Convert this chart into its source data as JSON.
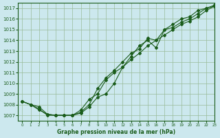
{
  "title": "Graphe pression niveau de la mer (hPa)",
  "bg_color": "#cce8ee",
  "line_color": "#1a5c1a",
  "grid_color": "#99bb99",
  "xlim": [
    -0.5,
    23
  ],
  "ylim": [
    1006.5,
    1017.5
  ],
  "yticks": [
    1007,
    1008,
    1009,
    1010,
    1011,
    1012,
    1013,
    1014,
    1015,
    1016,
    1017
  ],
  "xticks": [
    0,
    1,
    2,
    3,
    4,
    5,
    6,
    7,
    8,
    9,
    10,
    11,
    12,
    13,
    14,
    15,
    16,
    17,
    18,
    19,
    20,
    21,
    22,
    23
  ],
  "series1_x": [
    0,
    1,
    2,
    3,
    4,
    5,
    6,
    7,
    8,
    9,
    10,
    11,
    12,
    13,
    14,
    15,
    16,
    17,
    18,
    19,
    20,
    21,
    22,
    23
  ],
  "series1_y": [
    1008.3,
    1008.0,
    1007.5,
    1007.1,
    1007.0,
    1007.0,
    1007.0,
    1007.5,
    1008.5,
    1009.0,
    1010.3,
    1011.0,
    1011.5,
    1012.5,
    1013.5,
    1014.0,
    1013.3,
    1015.0,
    1015.5,
    1016.0,
    1016.2,
    1016.8,
    1017.0,
    1017.2
  ],
  "series2_x": [
    0,
    1,
    2,
    3,
    4,
    5,
    6,
    7,
    8,
    9,
    10,
    11,
    12,
    13,
    14,
    15,
    16,
    17,
    18,
    19,
    20,
    21,
    22,
    23
  ],
  "series2_y": [
    1008.3,
    1008.0,
    1007.8,
    1007.1,
    1007.0,
    1007.0,
    1007.0,
    1007.2,
    1007.8,
    1008.7,
    1009.0,
    1010.0,
    1011.5,
    1012.2,
    1012.8,
    1013.5,
    1014.0,
    1014.5,
    1015.0,
    1015.5,
    1015.8,
    1016.2,
    1016.8,
    1017.2
  ],
  "series3_x": [
    0,
    1,
    2,
    3,
    4,
    5,
    6,
    7,
    8,
    9,
    10,
    11,
    12,
    13,
    14,
    15,
    16,
    17,
    18,
    19,
    20,
    21,
    22,
    23
  ],
  "series3_y": [
    1008.3,
    1008.0,
    1007.6,
    1007.0,
    1007.0,
    1007.0,
    1007.0,
    1007.3,
    1008.0,
    1009.5,
    1010.5,
    1011.2,
    1012.0,
    1012.8,
    1013.2,
    1014.2,
    1014.0,
    1015.0,
    1015.2,
    1015.7,
    1016.0,
    1016.5,
    1017.0,
    1017.3
  ]
}
